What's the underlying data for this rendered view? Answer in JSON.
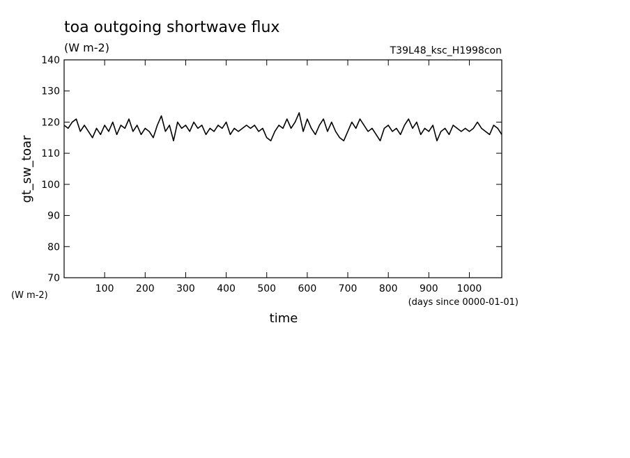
{
  "chart_data": {
    "type": "line",
    "title": "toa outgoing shortwave flux",
    "subtitle": "(W m-2)",
    "run_name": "T39L48_ksc_H1998con",
    "y_label": "gt_sw_toar",
    "y_unit": "(W m-2)",
    "x_label": "time",
    "x_unit": "(days since 0000-01-01)",
    "xlim": [
      0,
      1080
    ],
    "ylim": [
      70,
      140
    ],
    "xticks": [
      100,
      200,
      300,
      400,
      500,
      600,
      700,
      800,
      900,
      1000
    ],
    "yticks": [
      70,
      80,
      90,
      100,
      110,
      120,
      130,
      140
    ],
    "x": [
      0,
      10,
      20,
      30,
      40,
      50,
      60,
      70,
      80,
      90,
      100,
      110,
      120,
      130,
      140,
      150,
      160,
      170,
      180,
      190,
      200,
      210,
      220,
      230,
      240,
      250,
      260,
      270,
      280,
      290,
      300,
      310,
      320,
      330,
      340,
      350,
      360,
      370,
      380,
      390,
      400,
      410,
      420,
      430,
      440,
      450,
      460,
      470,
      480,
      490,
      500,
      510,
      520,
      530,
      540,
      550,
      560,
      570,
      580,
      590,
      600,
      610,
      620,
      630,
      640,
      650,
      660,
      670,
      680,
      690,
      700,
      710,
      720,
      730,
      740,
      750,
      760,
      770,
      780,
      790,
      800,
      810,
      820,
      830,
      840,
      850,
      860,
      870,
      880,
      890,
      900,
      910,
      920,
      930,
      940,
      950,
      960,
      970,
      980,
      990,
      1000,
      1010,
      1020,
      1030,
      1040,
      1050,
      1060,
      1070,
      1080
    ],
    "series": [
      {
        "name": "gt_sw_toar",
        "color": "#000000",
        "values": [
          119,
          118,
          120,
          121,
          117,
          119,
          117,
          115,
          118,
          116,
          119,
          117,
          120,
          116,
          119,
          118,
          121,
          117,
          119,
          116,
          118,
          117,
          115,
          119,
          122,
          117,
          119,
          114,
          120,
          118,
          119,
          117,
          120,
          118,
          119,
          116,
          118,
          117,
          119,
          118,
          120,
          116,
          118,
          117,
          118,
          119,
          118,
          119,
          117,
          118,
          115,
          114,
          117,
          119,
          118,
          121,
          118,
          120,
          123,
          117,
          121,
          118,
          116,
          119,
          121,
          117,
          120,
          117,
          115,
          114,
          117,
          120,
          118,
          121,
          119,
          117,
          118,
          116,
          114,
          118,
          119,
          117,
          118,
          116,
          119,
          121,
          118,
          120,
          116,
          118,
          117,
          119,
          114,
          117,
          118,
          116,
          119,
          118,
          117,
          118,
          117,
          118,
          120,
          118,
          117,
          116,
          119,
          118,
          116
        ]
      }
    ]
  }
}
